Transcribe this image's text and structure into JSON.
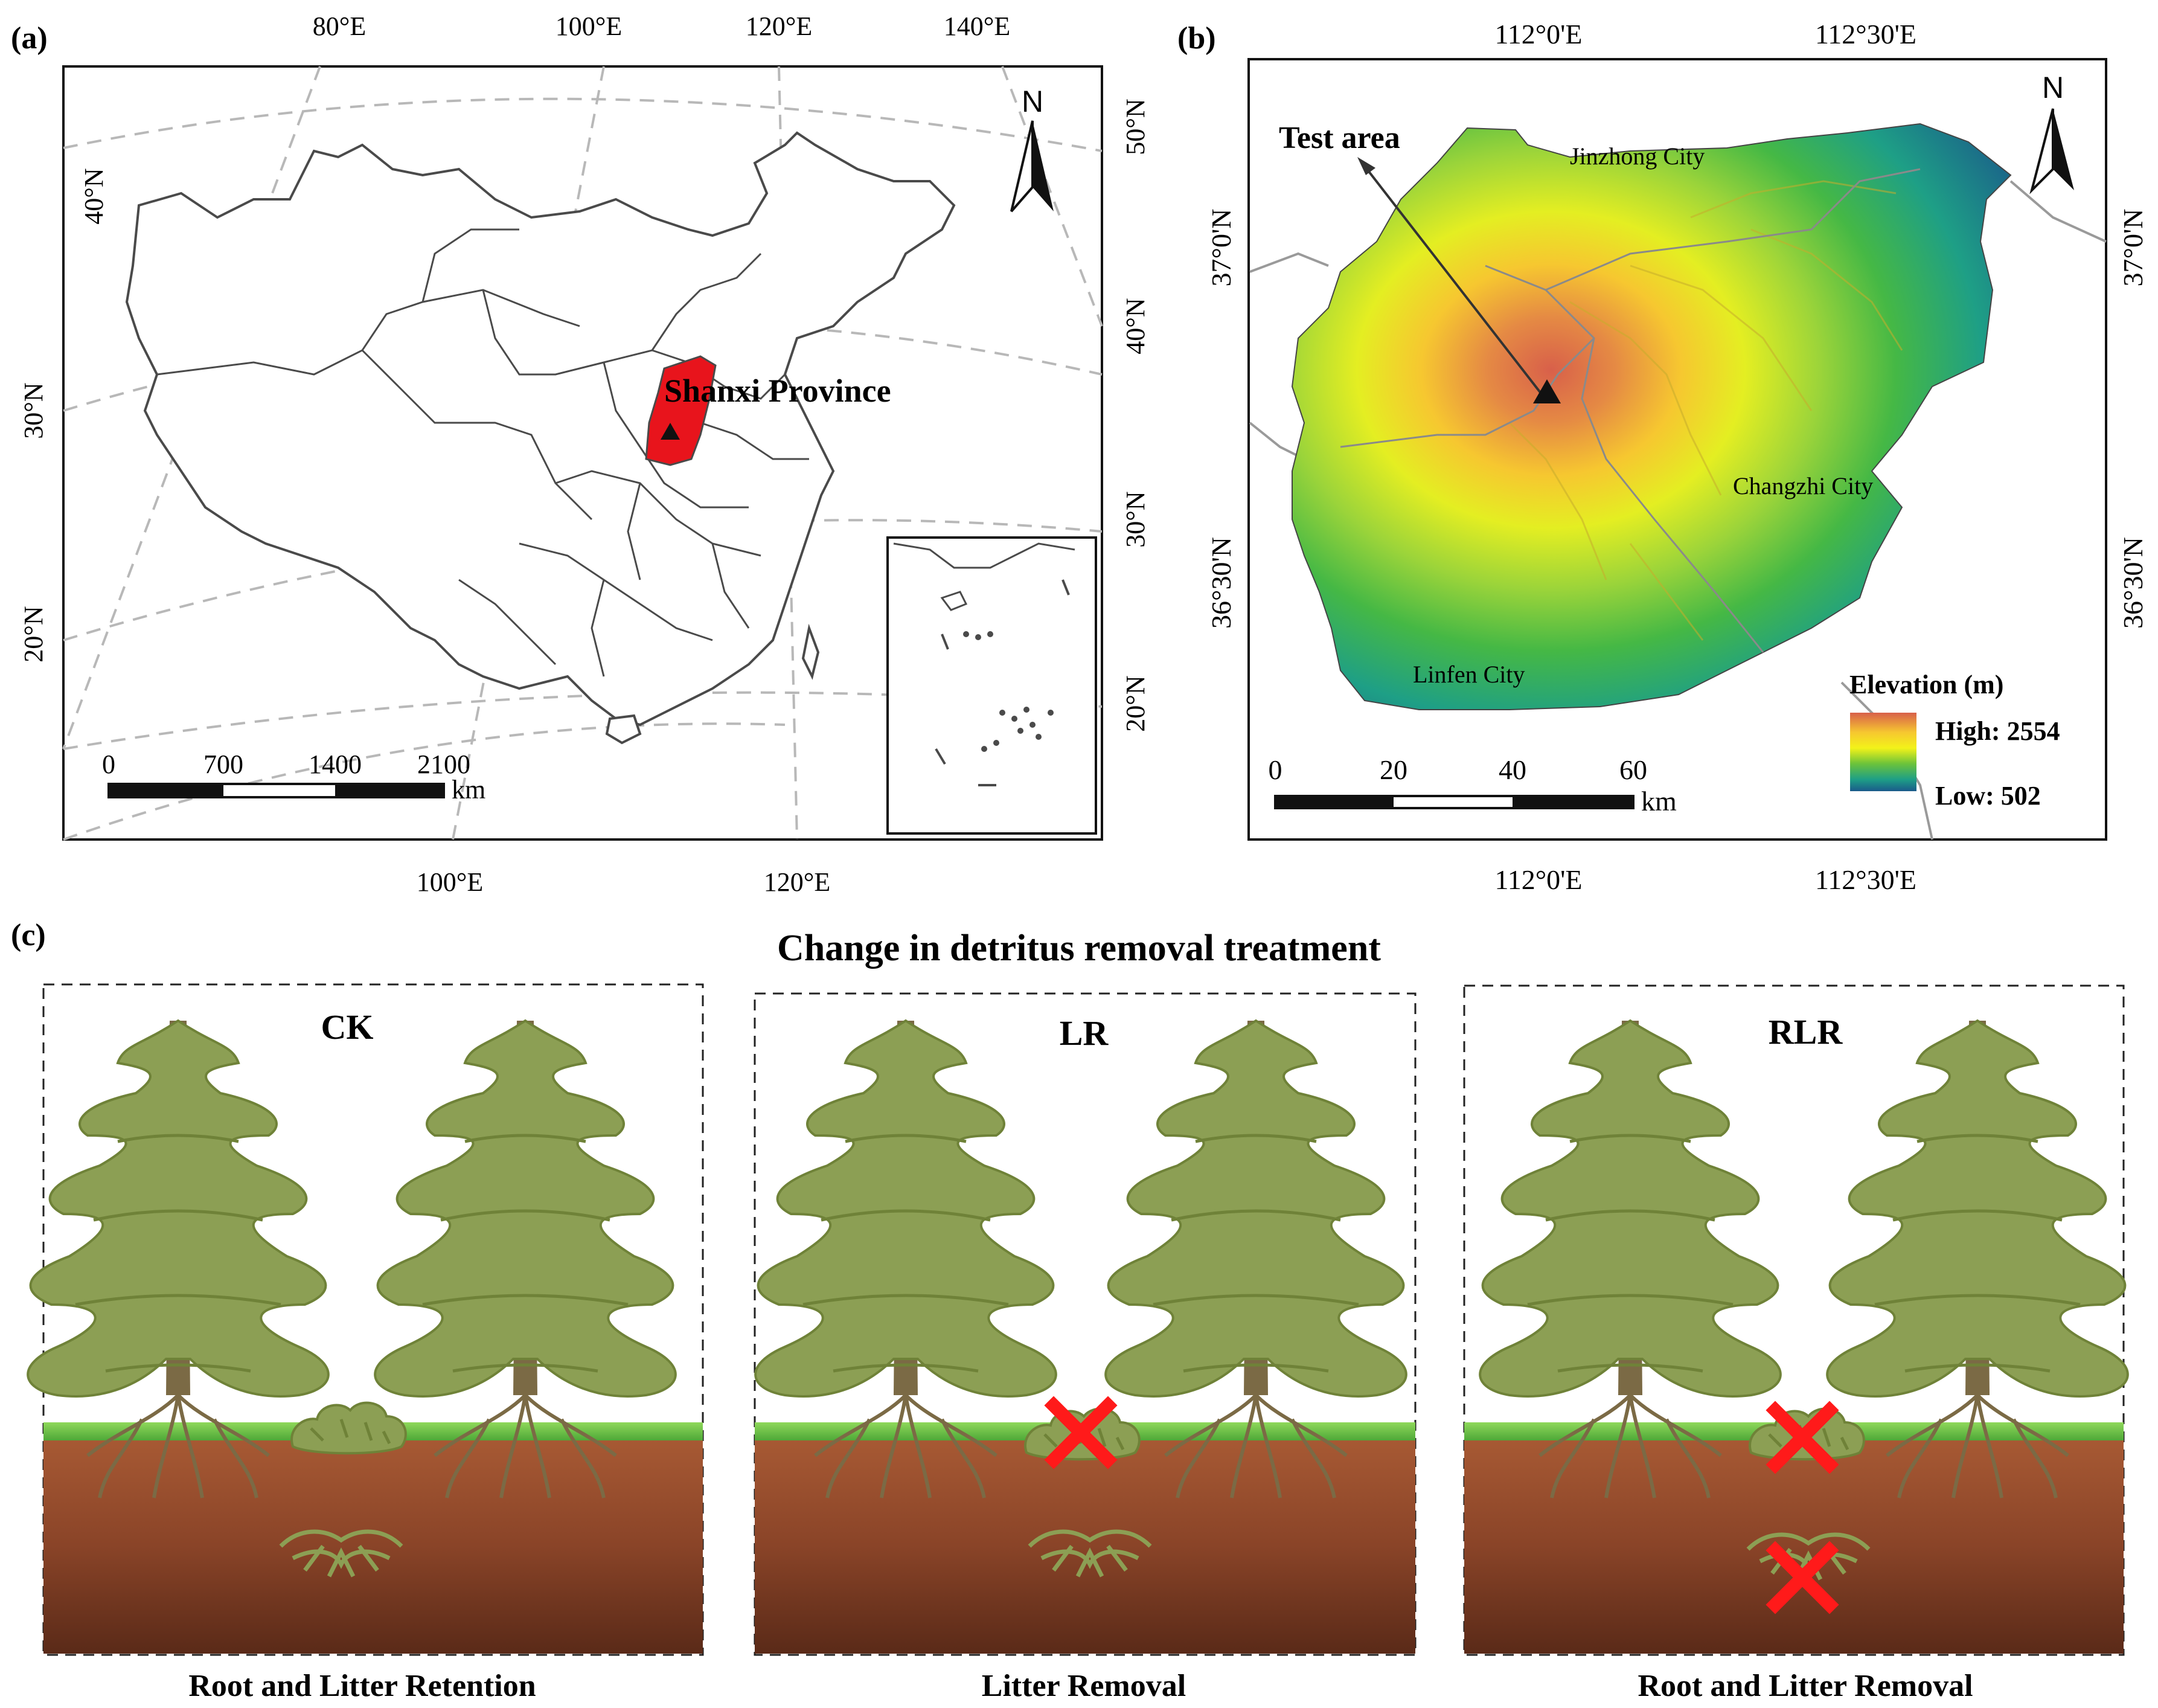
{
  "panel_a": {
    "letter": "(a)",
    "top_lon_ticks": [
      "80°E",
      "100°E",
      "120°E",
      "140°E"
    ],
    "bottom_lon_ticks": [
      "100°E",
      "120°E"
    ],
    "left_lat_ticks": [
      "40°N",
      "30°N",
      "20°N"
    ],
    "right_lat_ticks": [
      "50°N",
      "40°N",
      "30°N",
      "20°N"
    ],
    "north": "N",
    "province_label": "Shanxi Province",
    "scale_ticks": [
      "0",
      "700",
      "1400",
      "2100"
    ],
    "scale_unit": "km",
    "colors": {
      "province": "#e8141c",
      "border": "#4a4a4a",
      "graticule": "#b8b8b8"
    }
  },
  "panel_b": {
    "letter": "(b)",
    "top_lon_ticks": [
      "112°0'E",
      "112°30'E"
    ],
    "bottom_lon_ticks": [
      "112°0'E",
      "112°30'E"
    ],
    "left_lat_ticks": [
      "37°0'N",
      "36°30'N"
    ],
    "right_lat_ticks": [
      "37°0'N",
      "36°30'N"
    ],
    "north": "N",
    "test_area": "Test area",
    "cities": [
      "Jinzhong City",
      "Changzhi City",
      "Linfen City"
    ],
    "legend_title": "Elevation (m)",
    "legend_high": "High: 2554",
    "legend_low": "Low: 502",
    "scale_ticks": [
      "0",
      "20",
      "40",
      "60"
    ],
    "scale_unit": "km",
    "colors": {
      "high": "#d8604a",
      "mid_high": "#f6c730",
      "mid": "#f3f219",
      "mid_low": "#6cc33a",
      "low": "#1e9f86",
      "lowest": "#1a5a8a"
    }
  },
  "panel_c": {
    "letter": "(c)",
    "title": "Change in detritus removal treatment",
    "treatments": [
      {
        "code": "CK",
        "caption": "Root and Litter Retention"
      },
      {
        "code": "LR",
        "caption": "Litter Removal"
      },
      {
        "code": "RLR",
        "caption": "Root and Litter Removal"
      }
    ],
    "colors": {
      "tree": "#8c9f54",
      "trunk": "#7b6a45",
      "grass": "#6ec04a",
      "soil": "#8a4428",
      "cross": "#ff1a1a"
    }
  }
}
